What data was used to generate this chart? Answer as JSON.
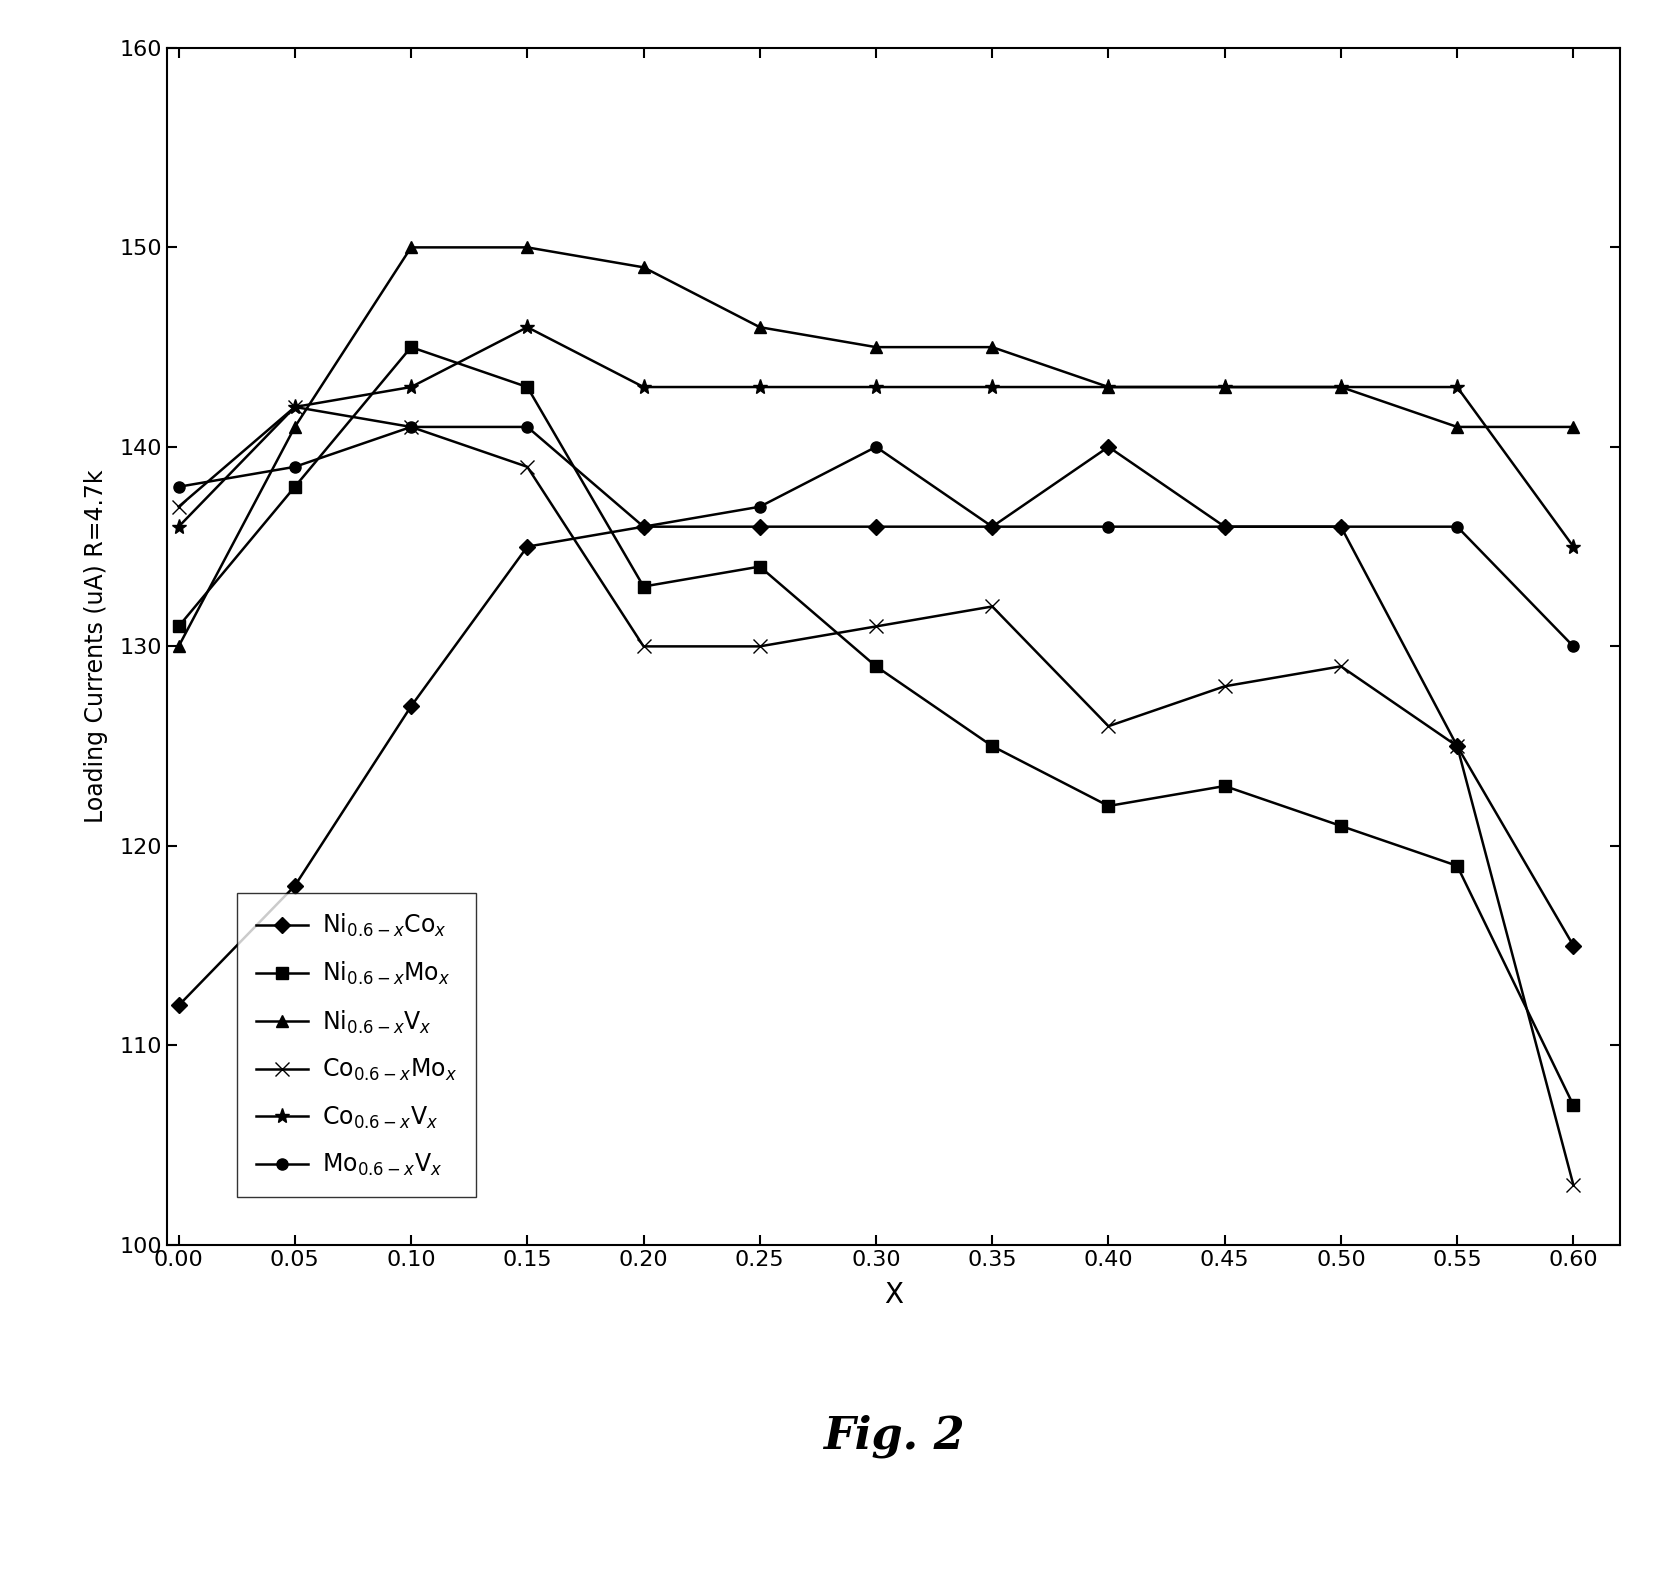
{
  "x": [
    0,
    0.05,
    0.1,
    0.15,
    0.2,
    0.25,
    0.3,
    0.35,
    0.4,
    0.45,
    0.5,
    0.55,
    0.6
  ],
  "series": {
    "Ni_Co": [
      112,
      118,
      127,
      135,
      136,
      136,
      136,
      136,
      140,
      136,
      136,
      125,
      115
    ],
    "Ni_Mo": [
      131,
      138,
      145,
      143,
      133,
      134,
      129,
      125,
      122,
      123,
      121,
      119,
      107
    ],
    "Ni_V": [
      130,
      141,
      150,
      150,
      149,
      146,
      145,
      145,
      143,
      143,
      143,
      141,
      141
    ],
    "Co_Mo": [
      137,
      142,
      141,
      139,
      130,
      130,
      131,
      132,
      126,
      128,
      129,
      125,
      103
    ],
    "Co_V": [
      136,
      142,
      143,
      146,
      143,
      143,
      143,
      143,
      143,
      143,
      143,
      143,
      135
    ],
    "Mo_V": [
      138,
      139,
      141,
      141,
      136,
      137,
      140,
      136,
      136,
      136,
      136,
      136,
      130
    ]
  },
  "legend_labels": [
    "Ni$_{0.6-x}$Co$_x$",
    "Ni$_{0.6-x}$Mo$_x$",
    "Ni$_{0.6-x}$V$_x$",
    "Co$_{0.6-x}$Mo$_x$",
    "Co$_{0.6-x}$V$_x$",
    "Mo$_{0.6-x}$V$_x$"
  ],
  "ylabel": "Loading Currents (uA) R=4.7k",
  "xlabel": "X",
  "ylim": [
    100,
    160
  ],
  "xlim": [
    -0.005,
    0.62
  ],
  "fig_label": "Fig. 2",
  "background_color": "#ffffff",
  "line_color": "#000000",
  "xticks": [
    0,
    0.05,
    0.1,
    0.15,
    0.2,
    0.25,
    0.3,
    0.35,
    0.4,
    0.45,
    0.5,
    0.55,
    0.6
  ],
  "yticks": [
    100,
    110,
    120,
    130,
    140,
    150,
    160
  ]
}
